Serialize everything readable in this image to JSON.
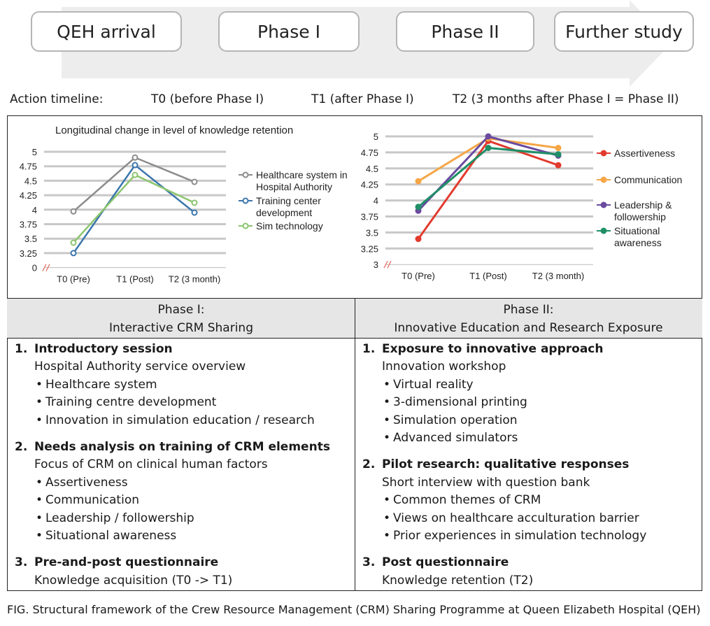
{
  "stages": [
    "QEH arrival",
    "Phase I",
    "Phase II",
    "Further study"
  ],
  "timeline": {
    "label": "Action timeline:",
    "t0": "T0 (before Phase I)",
    "t1": "T1 (after Phase I)",
    "t2": "T2 (3 months after Phase I = Phase II)"
  },
  "chart_data": [
    {
      "type": "line",
      "title": "Longitudinal change in level of knowledge retention",
      "categories": [
        "T0 (Pre)",
        "T1 (Post)",
        "T2 (3 month)"
      ],
      "yticks": [
        "5",
        "4.75",
        "4.5",
        "4.25",
        "4",
        "3.75",
        "3.5",
        "3.25",
        "0"
      ],
      "ylim": [
        3.25,
        5
      ],
      "axis_break": true,
      "series": [
        {
          "name": "Healthcare system in Hospital Authority",
          "values": [
            3.97,
            4.9,
            4.48
          ],
          "color": "#8c8c8c"
        },
        {
          "name": "Training center development",
          "values": [
            3.25,
            4.77,
            3.95
          ],
          "color": "#3b76ad"
        },
        {
          "name": "Sim technology",
          "values": [
            3.43,
            4.6,
            4.12
          ],
          "color": "#8cc56d"
        }
      ],
      "legend_position": "right"
    },
    {
      "type": "line",
      "categories": [
        "T0 (Pre)",
        "T1 (Post)",
        "T2 (3 month)"
      ],
      "yticks": [
        "5",
        "4.75",
        "4.5",
        "4.25",
        "4",
        "3.75",
        "3.5",
        "3.25",
        "3"
      ],
      "ylim": [
        3,
        5
      ],
      "axis_break": true,
      "series": [
        {
          "name": "Assertiveness",
          "values": [
            3.4,
            4.93,
            4.55
          ],
          "color": "#e23a2e"
        },
        {
          "name": "Communication",
          "values": [
            4.3,
            4.97,
            4.82
          ],
          "color": "#f5a646"
        },
        {
          "name": "Leadership & followership",
          "values": [
            3.84,
            5.0,
            4.7
          ],
          "color": "#6a4ba0"
        },
        {
          "name": "Situational awareness",
          "values": [
            3.9,
            4.82,
            4.72
          ],
          "color": "#1f8f66"
        }
      ],
      "legend_position": "right"
    }
  ],
  "phase1": {
    "heading": "Phase I:",
    "subheading": "Interactive CRM Sharing",
    "items": [
      {
        "num": "1.",
        "title": "Introductory session",
        "sub": "Hospital Authority service overview",
        "bullets": [
          "Healthcare system",
          "Training centre development",
          "Innovation in simulation education / research"
        ]
      },
      {
        "num": "2.",
        "title": "Needs analysis on training of CRM elements",
        "sub": "Focus of CRM on clinical human factors",
        "bullets": [
          "Assertiveness",
          "Communication",
          "Leadership / followership",
          "Situational awareness"
        ]
      },
      {
        "num": "3.",
        "title": "Pre-and-post questionnaire",
        "sub": "Knowledge acquisition (T0 -> T1)",
        "bullets": []
      }
    ]
  },
  "phase2": {
    "heading": "Phase II:",
    "subheading": "Innovative Education and Research Exposure",
    "items": [
      {
        "num": "1.",
        "title": "Exposure to innovative approach",
        "sub": "Innovation workshop",
        "bullets": [
          "Virtual reality",
          "3-dimensional printing",
          "Simulation operation",
          "Advanced simulators"
        ]
      },
      {
        "num": "2.",
        "title": "Pilot research: qualitative responses",
        "sub": "Short interview with question bank",
        "bullets": [
          "Common themes of CRM",
          "Views on healthcare acculturation barrier",
          "Prior experiences in simulation technology"
        ]
      },
      {
        "num": "3.",
        "title": "Post questionnaire",
        "sub": "Knowledge retention (T2)",
        "bullets": []
      }
    ]
  },
  "caption": "FIG. Structural framework of the Crew Resource Management (CRM) Sharing Programme at Queen Elizabeth Hospital (QEH)"
}
